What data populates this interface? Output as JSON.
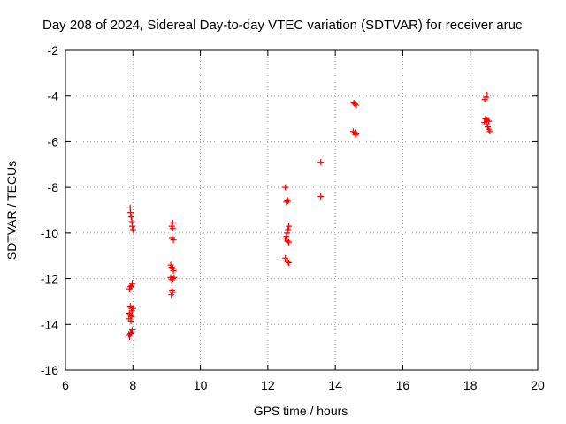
{
  "chart_data": {
    "type": "scatter",
    "title": "Day 208 of 2024, Sidereal Day-to-day VTEC variation (SDTVAR) for receiver aruc",
    "xlabel": "GPS time / hours",
    "ylabel": "SDTVAR / TECUs",
    "xlim": [
      6,
      20
    ],
    "ylim": [
      -16,
      -2
    ],
    "x_ticks": [
      6,
      8,
      10,
      12,
      14,
      16,
      18,
      20
    ],
    "y_ticks": [
      -16,
      -14,
      -12,
      -10,
      -8,
      -6,
      -4,
      -2
    ],
    "grid": true,
    "marker": "plus",
    "color": "#ff0000",
    "series": [
      {
        "name": "SDTVAR",
        "points": [
          [
            7.92,
            -8.9
          ],
          [
            7.93,
            -9.1
          ],
          [
            7.95,
            -9.3
          ],
          [
            7.97,
            -9.5
          ],
          [
            7.98,
            -9.7
          ],
          [
            8.0,
            -9.85
          ],
          [
            7.9,
            -12.45
          ],
          [
            7.93,
            -12.35
          ],
          [
            7.96,
            -12.3
          ],
          [
            7.98,
            -12.2
          ],
          [
            7.92,
            -13.2
          ],
          [
            7.95,
            -13.3
          ],
          [
            7.97,
            -13.4
          ],
          [
            8.0,
            -13.3
          ],
          [
            7.9,
            -13.5
          ],
          [
            7.93,
            -13.6
          ],
          [
            7.96,
            -13.65
          ],
          [
            7.88,
            -13.75
          ],
          [
            7.94,
            -13.85
          ],
          [
            7.88,
            -14.45
          ],
          [
            7.9,
            -14.55
          ],
          [
            7.93,
            -14.4
          ],
          [
            7.96,
            -14.35
          ],
          [
            7.98,
            -14.25
          ],
          [
            9.18,
            -9.55
          ],
          [
            9.15,
            -9.7
          ],
          [
            9.18,
            -9.8
          ],
          [
            9.16,
            -10.2
          ],
          [
            9.2,
            -10.3
          ],
          [
            9.12,
            -11.4
          ],
          [
            9.15,
            -11.5
          ],
          [
            9.18,
            -11.55
          ],
          [
            9.2,
            -11.65
          ],
          [
            9.12,
            -11.95
          ],
          [
            9.15,
            -12.05
          ],
          [
            9.18,
            -12.0
          ],
          [
            9.22,
            -11.95
          ],
          [
            9.16,
            -12.5
          ],
          [
            9.18,
            -12.6
          ],
          [
            9.14,
            -12.7
          ],
          [
            12.52,
            -8.0
          ],
          [
            12.58,
            -8.55
          ],
          [
            12.6,
            -8.6
          ],
          [
            12.55,
            -8.65
          ],
          [
            12.62,
            -9.7
          ],
          [
            12.6,
            -9.85
          ],
          [
            12.57,
            -10.0
          ],
          [
            12.55,
            -10.15
          ],
          [
            12.52,
            -10.25
          ],
          [
            12.58,
            -10.35
          ],
          [
            12.62,
            -10.4
          ],
          [
            12.52,
            -11.1
          ],
          [
            12.58,
            -11.25
          ],
          [
            12.62,
            -11.3
          ],
          [
            13.57,
            -6.9
          ],
          [
            13.57,
            -8.4
          ],
          [
            14.55,
            -4.3
          ],
          [
            14.58,
            -4.35
          ],
          [
            14.62,
            -4.4
          ],
          [
            14.53,
            -5.55
          ],
          [
            14.58,
            -5.6
          ],
          [
            14.62,
            -5.65
          ],
          [
            14.6,
            -5.7
          ],
          [
            18.5,
            -3.95
          ],
          [
            18.47,
            -4.05
          ],
          [
            18.43,
            -4.15
          ],
          [
            18.45,
            -5.0
          ],
          [
            18.5,
            -5.05
          ],
          [
            18.55,
            -5.1
          ],
          [
            18.42,
            -5.15
          ],
          [
            18.48,
            -5.25
          ],
          [
            18.52,
            -5.35
          ],
          [
            18.55,
            -5.45
          ],
          [
            18.58,
            -5.55
          ]
        ]
      }
    ]
  }
}
